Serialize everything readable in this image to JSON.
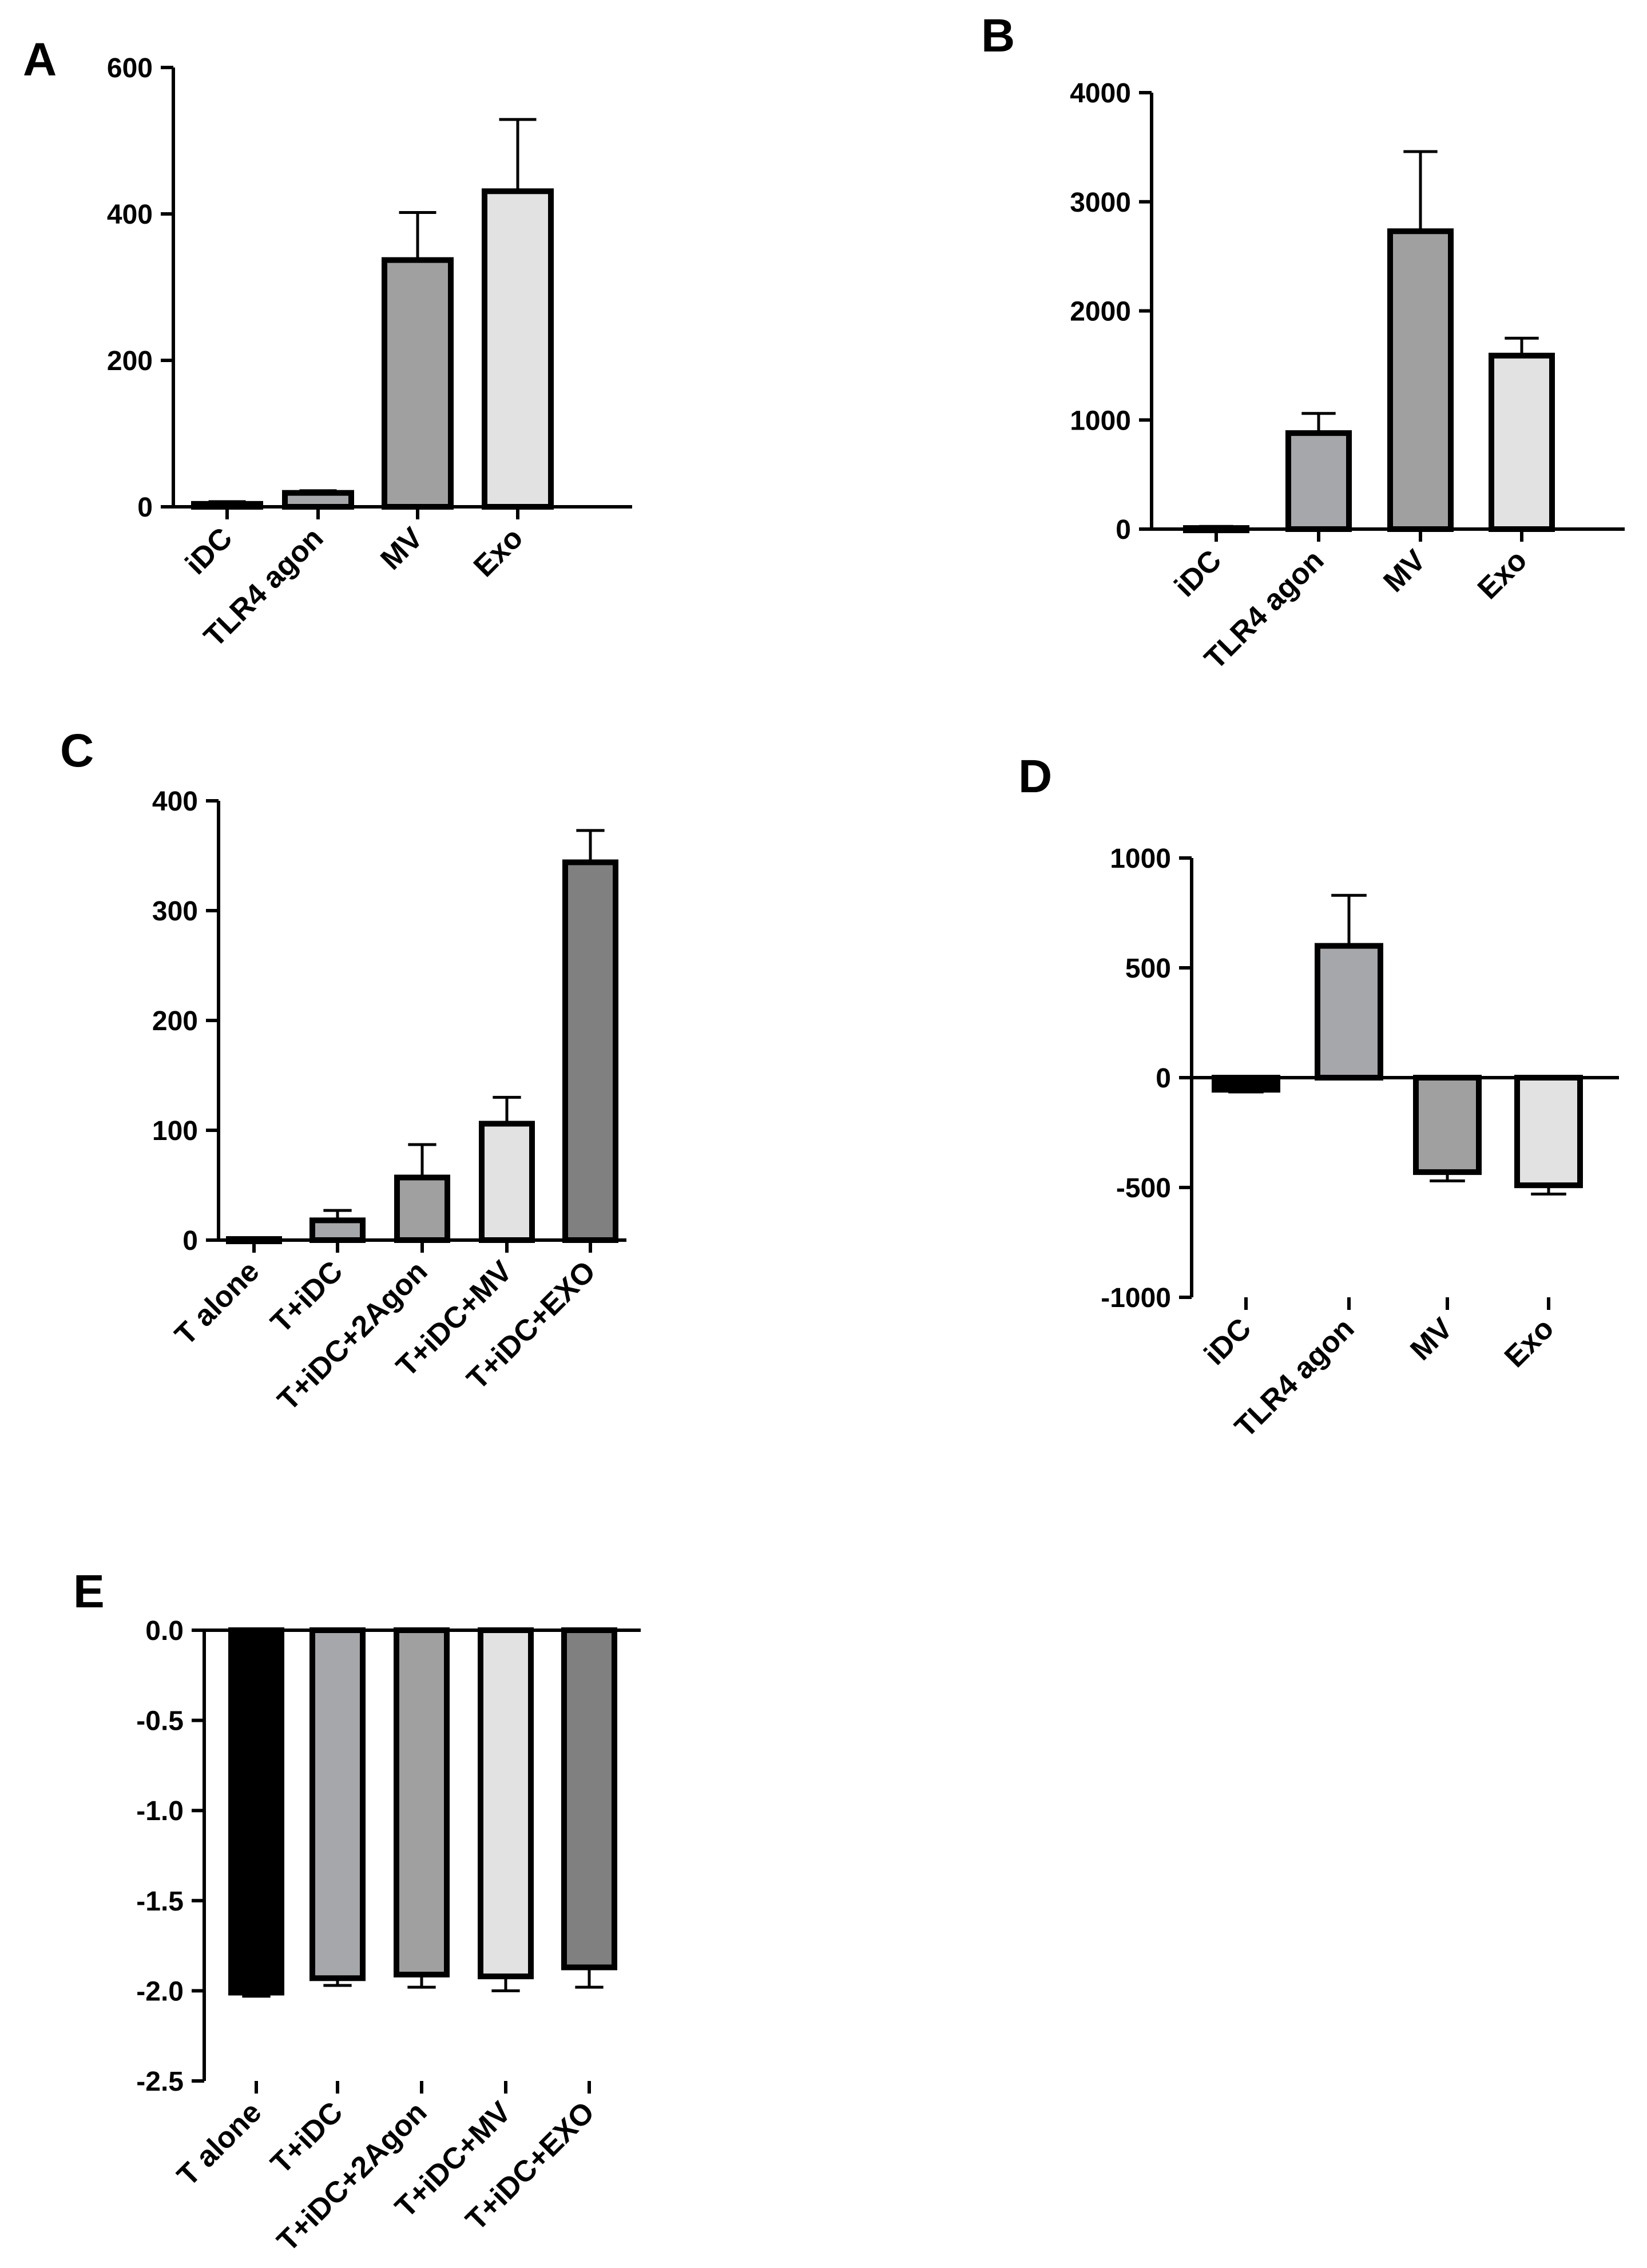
{
  "colors": {
    "black": "#000000",
    "dark_gray": "#808080",
    "mid_gray": "#a0a0a0",
    "gray": "#a6a7ab",
    "light_gray": "#e2e2e2"
  },
  "chart_data": [
    {
      "id": "A",
      "label": "A",
      "type": "bar",
      "categories": [
        "iDC",
        "TLR4 agon",
        "MV",
        "Exo"
      ],
      "values": [
        4,
        19,
        337,
        431
      ],
      "errors": [
        3,
        3,
        65,
        98
      ],
      "fills": [
        "#000000",
        "#a6a7ab",
        "#a0a0a0",
        "#e2e2e2"
      ],
      "ylim": [
        0,
        600
      ],
      "yticks": [
        0,
        200,
        400,
        600
      ],
      "ytick_labels": [
        "0",
        "200",
        "400",
        "600"
      ],
      "xlabel": "",
      "ylabel": ""
    },
    {
      "id": "B",
      "label": "B",
      "type": "bar",
      "categories": [
        "iDC",
        "TLR4 agon",
        "MV",
        "Exo"
      ],
      "values": [
        10,
        880,
        2730,
        1590
      ],
      "errors": [
        15,
        180,
        730,
        160
      ],
      "fills": [
        "#000000",
        "#a6a7ab",
        "#a0a0a0",
        "#e2e2e2"
      ],
      "ylim": [
        0,
        4000
      ],
      "yticks": [
        0,
        1000,
        2000,
        3000,
        4000
      ],
      "ytick_labels": [
        "0",
        "1000",
        "2000",
        "3000",
        "4000"
      ],
      "xlabel": "",
      "ylabel": ""
    },
    {
      "id": "C",
      "label": "C",
      "type": "bar",
      "categories": [
        "T alone",
        "T+iDC",
        "T+iDC+2Agon",
        "T+iDC+MV",
        "T+iDC+EXO"
      ],
      "values": [
        1,
        18,
        57,
        106,
        344
      ],
      "errors": [
        1,
        9,
        30,
        24,
        29
      ],
      "fills": [
        "#000000",
        "#a6a7ab",
        "#a0a0a0",
        "#e2e2e2",
        "#808080"
      ],
      "ylim": [
        0,
        400
      ],
      "yticks": [
        0,
        100,
        200,
        300,
        400
      ],
      "ytick_labels": [
        "0",
        "100",
        "200",
        "300",
        "400"
      ],
      "xlabel": "",
      "ylabel": ""
    },
    {
      "id": "D",
      "label": "D",
      "type": "bar",
      "categories": [
        "iDC",
        "TLR4 agon",
        "MV",
        "Exo"
      ],
      "values": [
        -55,
        600,
        -430,
        -490
      ],
      "errors": [
        10,
        230,
        40,
        40
      ],
      "fills": [
        "#000000",
        "#a6a7ab",
        "#a0a0a0",
        "#e2e2e2"
      ],
      "ylim": [
        -1000,
        1000
      ],
      "yticks": [
        -1000,
        -500,
        0,
        500,
        1000
      ],
      "ytick_labels": [
        "-1000",
        "-500",
        "0",
        "500",
        "1000"
      ],
      "xlabel": "",
      "ylabel": ""
    },
    {
      "id": "E",
      "label": "E",
      "type": "bar",
      "categories": [
        "T alone",
        "T+iDC",
        "T+iDC+2Agon",
        "T+iDC+MV",
        "T+iDC+EXO"
      ],
      "values": [
        -2.01,
        -1.93,
        -1.91,
        -1.92,
        -1.87
      ],
      "errors": [
        0.02,
        0.04,
        0.07,
        0.08,
        0.11
      ],
      "fills": [
        "#000000",
        "#a6a7ab",
        "#a0a0a0",
        "#e2e2e2",
        "#808080"
      ],
      "ylim": [
        -2.5,
        0
      ],
      "yticks": [
        -2.5,
        -2.0,
        -1.5,
        -1.0,
        -0.5,
        0.0
      ],
      "ytick_labels": [
        "-2.5",
        "-2.0",
        "-1.5",
        "-1.0",
        "-0.5",
        "0.0"
      ],
      "xlabel": "",
      "ylabel": ""
    }
  ]
}
